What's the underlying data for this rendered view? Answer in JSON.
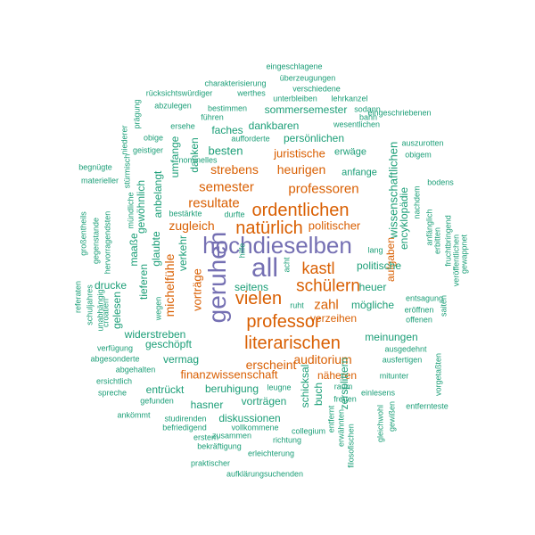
{
  "palette": {
    "purple": "#7570b3",
    "orange": "#d95f02",
    "teal": "#1b9e77"
  },
  "words": [
    "hochdieselben",
    "all",
    "geruhen",
    "ordentlichen",
    "natürlich",
    "literarischen",
    "professor",
    "schülern",
    "vielen",
    "kastl",
    "resultate",
    "semester",
    "professoren",
    "zugleich",
    "politischer",
    "strebens",
    "heurigen",
    "juristische",
    "zahl",
    "verzeihen",
    "auditorium",
    "erscheint",
    "finanzwissenschaft",
    "michelfühle",
    "vorträge",
    "näheren",
    "aufgaben",
    "encyklopädie",
    "wissenschaftlichen",
    "sommersemester",
    "dankbaren",
    "persönlichen",
    "faches",
    "besten",
    "erwäge",
    "anfange",
    "umfange",
    "danken",
    "gewöhnlich",
    "anbelangt",
    "glaubte",
    "maaße",
    "tieferen",
    "verkehr",
    "widerstreben",
    "geschöpft",
    "drucke",
    "gelesen",
    "seitens",
    "politische",
    "heuer",
    "mögliche",
    "entsagung",
    "eröffnen",
    "offenen",
    "saiten",
    "meinungen",
    "schicksal",
    "buch",
    "zersplittern",
    "ausgedehnt",
    "ausfertigen",
    "mitunter",
    "vermag",
    "entrückt",
    "beruhigung",
    "hasner",
    "vorträgen",
    "diskussionen",
    "einlesens",
    "entfernteste",
    "gleichwohl",
    "gewißen",
    "vorgetaßten",
    "eingeschlagene",
    "überzeugungen",
    "charakterisierung",
    "verschiedene",
    "rücksichtswürdiger",
    "werthes",
    "unterbleiben",
    "lehrkanzel",
    "sodann",
    "abzulegen",
    "bestimmen",
    "wesentlichen",
    "eingeschriebenen",
    "führen",
    "bahn",
    "ersehe",
    "aufforderte",
    "prägung",
    "obige",
    "auszurotten",
    "niederer",
    "nominelles",
    "geistiger",
    "obigem",
    "begnügte",
    "stürmisch",
    "bodens",
    "materieller",
    "mündliche",
    "nachdem",
    "großentheils",
    "gegenstande",
    "hervorragendsten",
    "bestärkte",
    "durfte",
    "anfänglich",
    "erbitten",
    "fruchtbringend",
    "veröffentlichen",
    "gewappnet",
    "lang",
    "hilfe",
    "acht",
    "ruht",
    "wegen",
    "croatien",
    "referaten",
    "schuljahres",
    "unabhängig",
    "verfügung",
    "abgesonderte",
    "abgehalten",
    "ersichtlich",
    "spreche",
    "gefunden",
    "ankömmt",
    "studirenden",
    "befriedigend",
    "erstern",
    "zusammen",
    "vollkommene",
    "bekräftigung",
    "richtung",
    "leugne",
    "raum",
    "freuen",
    "entfernt",
    "erwähnten",
    "filosofischen",
    "collegium",
    "erleichterung",
    "praktischer",
    "aufklärungsuchenden"
  ]
}
